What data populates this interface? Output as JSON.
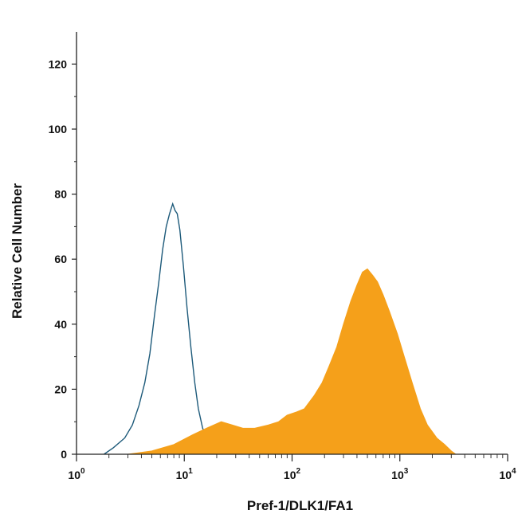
{
  "chart_data": {
    "type": "area",
    "xlabel": "Pref-1/DLK1/FA1",
    "ylabel": "Relative Cell Number",
    "x_scale": "log",
    "xlim": [
      1,
      10000
    ],
    "ylim": [
      0,
      125
    ],
    "x_ticks": [
      {
        "base": "10",
        "exp": "0"
      },
      {
        "base": "10",
        "exp": "1"
      },
      {
        "base": "10",
        "exp": "2"
      },
      {
        "base": "10",
        "exp": "3"
      },
      {
        "base": "10",
        "exp": "4"
      }
    ],
    "y_ticks": [
      "0",
      "20",
      "40",
      "60",
      "80",
      "100",
      "120"
    ],
    "series": [
      {
        "style": "outline",
        "color": "#1d5a7a",
        "x": [
          1.8,
          2.2,
          2.8,
          3.3,
          3.8,
          4.3,
          4.8,
          5.3,
          5.8,
          6.3,
          6.8,
          7.3,
          7.8,
          8.2,
          8.6,
          9.1,
          9.8,
          10.6,
          11.5,
          12.5,
          13.5,
          14.8,
          16.5,
          19,
          23,
          30,
          40,
          55,
          70
        ],
        "y": [
          0,
          2,
          5,
          9,
          15,
          22,
          31,
          43,
          53,
          63,
          70,
          74,
          77,
          75,
          74,
          69,
          58,
          45,
          33,
          22,
          14,
          8,
          5,
          3,
          2,
          1,
          1,
          0.5,
          0
        ]
      },
      {
        "style": "filled",
        "color": "#f5a01a",
        "x": [
          3,
          5,
          8,
          12,
          16,
          22,
          28,
          35,
          45,
          60,
          75,
          90,
          110,
          130,
          160,
          190,
          220,
          260,
          300,
          350,
          400,
          450,
          500,
          560,
          620,
          700,
          800,
          950,
          1100,
          1300,
          1550,
          1800,
          2200,
          2600,
          3000,
          3300
        ],
        "y": [
          0,
          1,
          3,
          6,
          8,
          10,
          9,
          8,
          8,
          9,
          10,
          12,
          13,
          14,
          18,
          22,
          27,
          33,
          40,
          47,
          52,
          56,
          57,
          55,
          53,
          49,
          44,
          37,
          30,
          22,
          14,
          9,
          5,
          3,
          1,
          0
        ]
      }
    ]
  }
}
